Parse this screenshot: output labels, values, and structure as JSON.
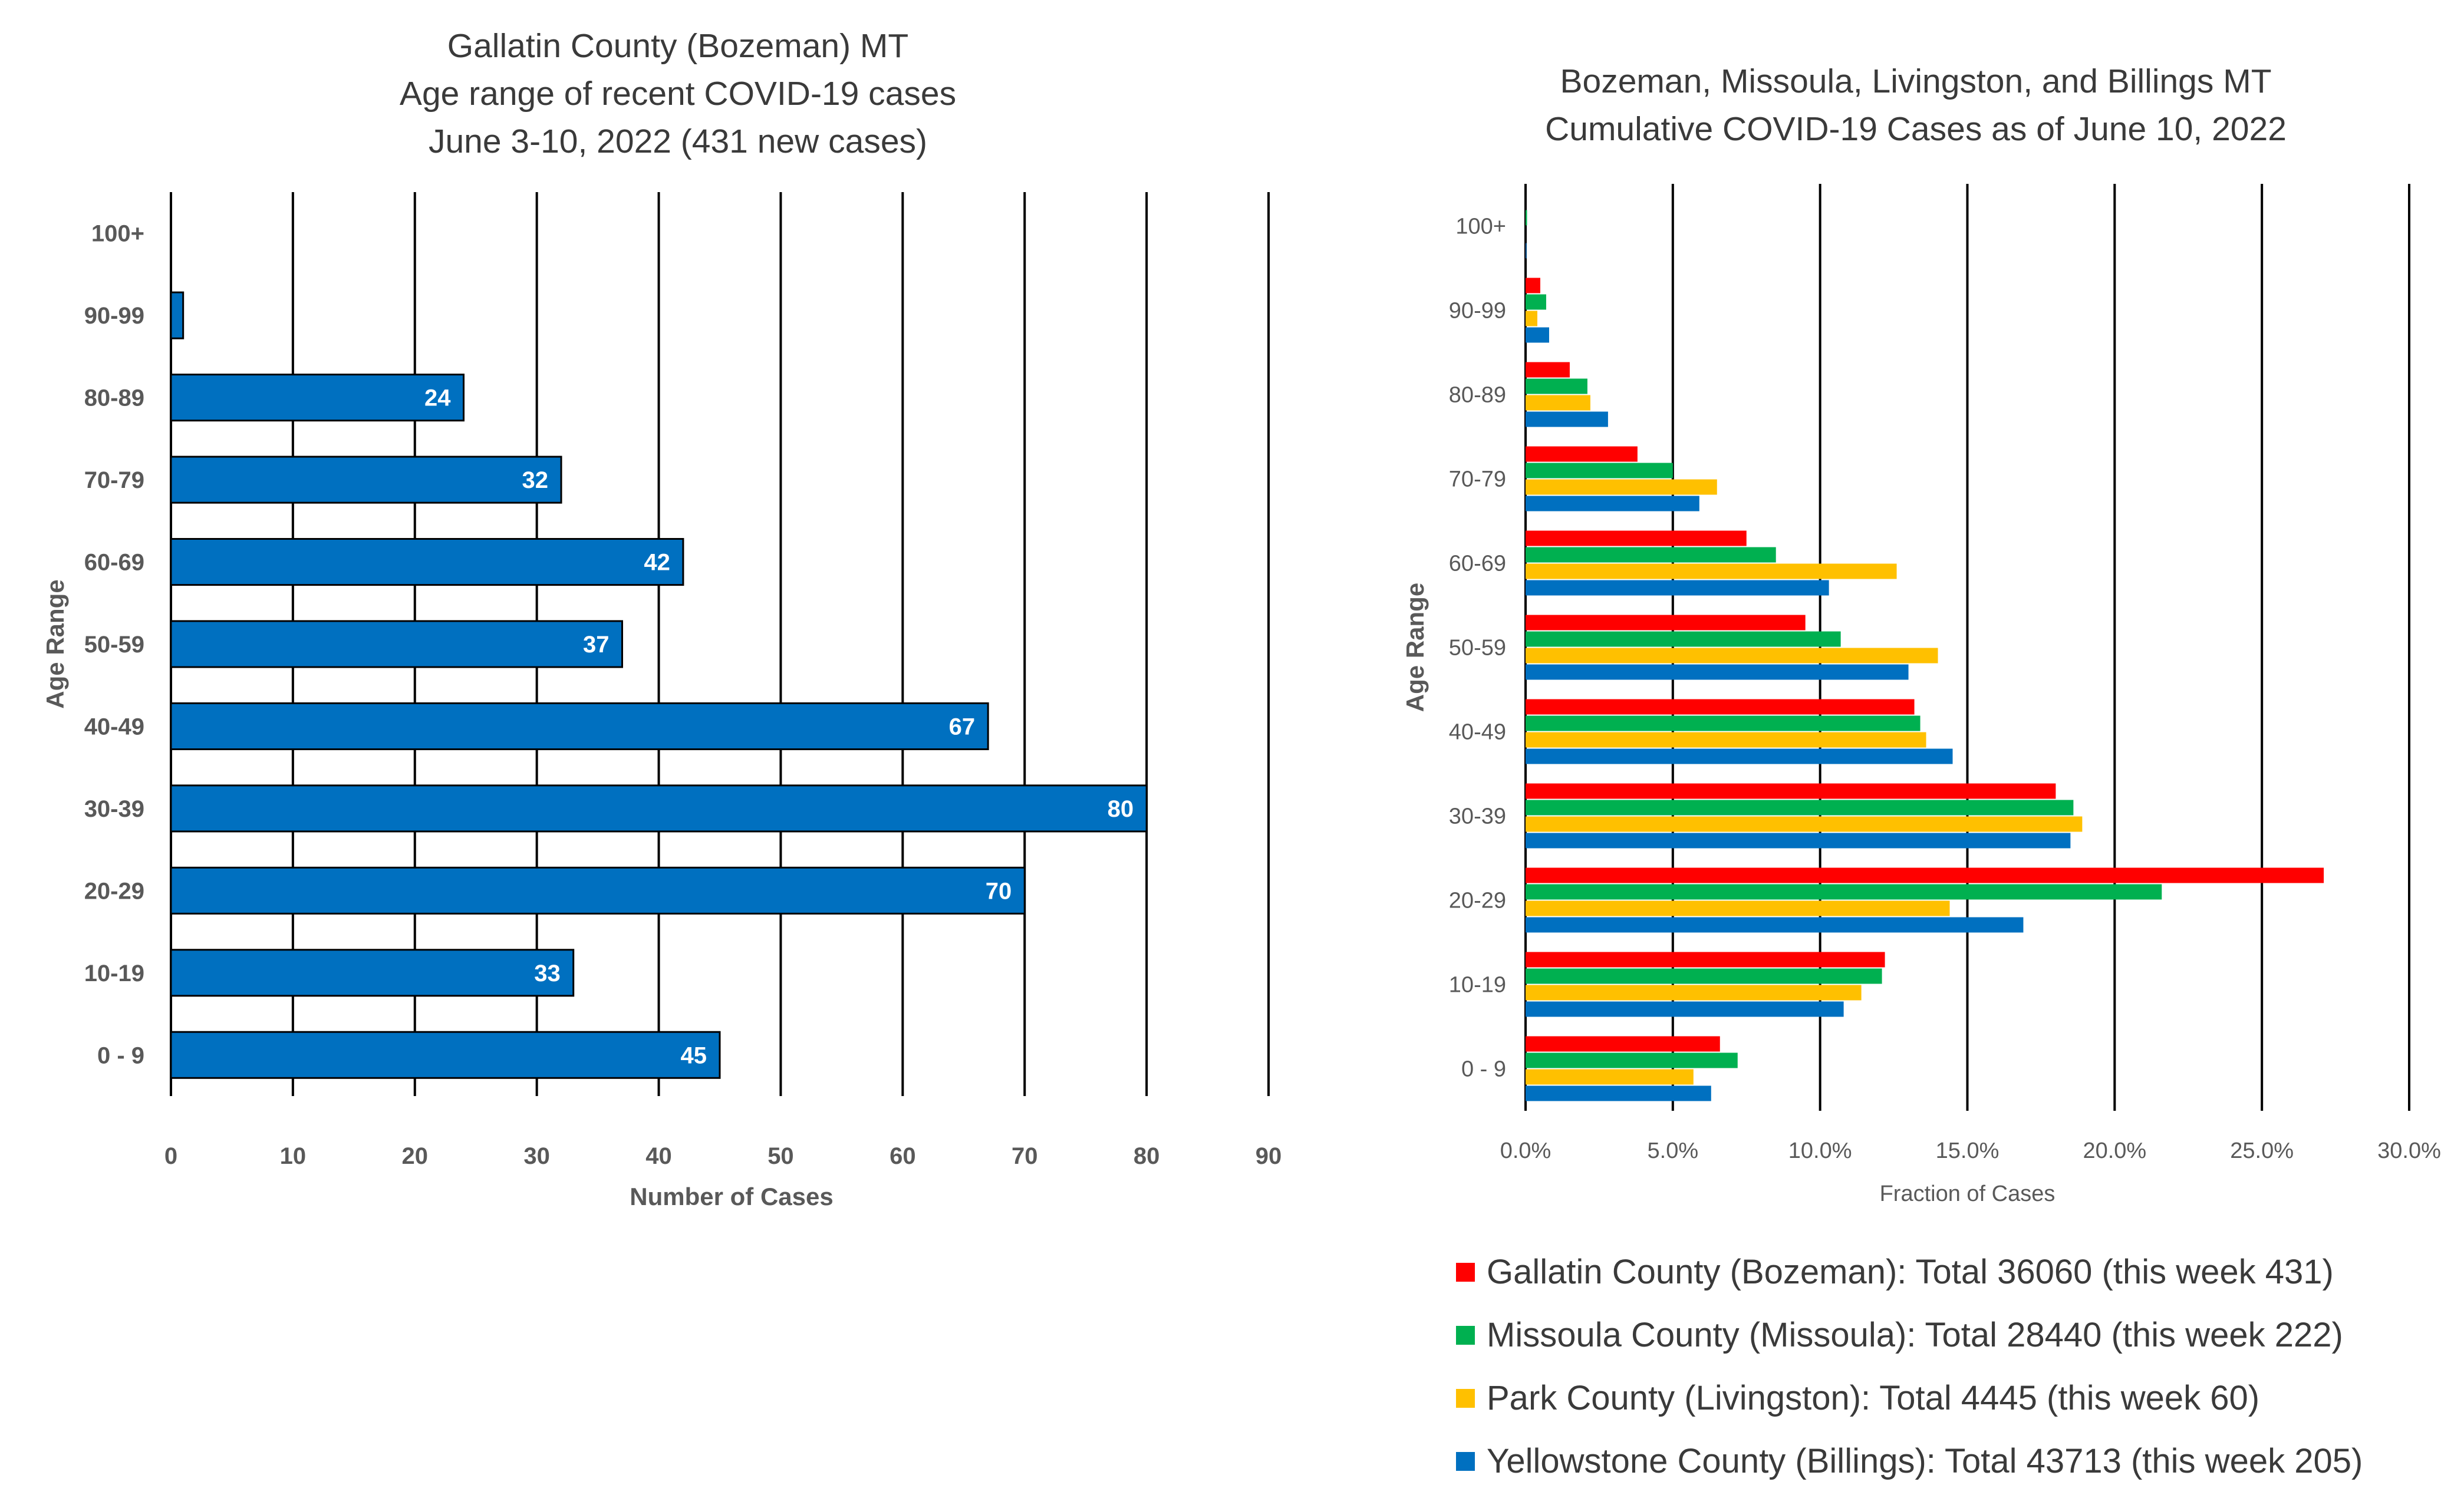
{
  "colors": {
    "bar_left": "#0070c0",
    "gallatin": "#ff0000",
    "missoula": "#00b050",
    "park": "#ffc000",
    "yellowstone": "#0070c0",
    "axis_text": "#595959",
    "title_text": "#3a3a3a"
  },
  "chart_data": [
    {
      "type": "bar",
      "orientation": "horizontal",
      "title_lines": [
        "Gallatin County (Bozeman) MT",
        "Age range of recent COVID-19 cases",
        "June 3-10, 2022 (431 new cases)"
      ],
      "xlabel": "Number of Cases",
      "ylabel": "Age Range",
      "categories": [
        "0 - 9",
        "10-19",
        "20-29",
        "30-39",
        "40-49",
        "50-59",
        "60-69",
        "70-79",
        "80-89",
        "90-99",
        "100+"
      ],
      "values": [
        45,
        33,
        70,
        80,
        67,
        37,
        42,
        32,
        24,
        1,
        0
      ],
      "data_labels": [
        "45",
        "33",
        "70",
        "80",
        "67",
        "37",
        "42",
        "32",
        "24",
        "",
        ""
      ],
      "xlim": [
        0,
        90
      ],
      "xticks": [
        0,
        10,
        20,
        30,
        40,
        50,
        60,
        70,
        80,
        90
      ],
      "xtick_labels": [
        "0",
        "10",
        "20",
        "30",
        "40",
        "50",
        "60",
        "70",
        "80",
        "90"
      ],
      "grid": "vertical"
    },
    {
      "type": "bar",
      "orientation": "horizontal",
      "title_lines": [
        "Bozeman, Missoula, Livingston, and Billings MT",
        "Cumulative COVID-19 Cases as of June 10, 2022"
      ],
      "xlabel": "Fraction of Cases",
      "ylabel": "Age Range",
      "categories": [
        "0 - 9",
        "10-19",
        "20-29",
        "30-39",
        "40-49",
        "50-59",
        "60-69",
        "70-79",
        "80-89",
        "90-99",
        "100+"
      ],
      "series": [
        {
          "name": "Gallatin County (Bozeman): Total 36060 (this week 431)",
          "color_key": "gallatin",
          "values": [
            0.066,
            0.122,
            0.271,
            0.18,
            0.132,
            0.095,
            0.075,
            0.038,
            0.015,
            0.005,
            0.0
          ]
        },
        {
          "name": "Missoula County (Missoula): Total 28440 (this week 222)",
          "color_key": "missoula",
          "values": [
            0.072,
            0.121,
            0.216,
            0.186,
            0.134,
            0.107,
            0.085,
            0.05,
            0.021,
            0.007,
            0.0005
          ]
        },
        {
          "name": "Park County (Livingston): Total 4445 (this week 60)",
          "color_key": "park",
          "values": [
            0.057,
            0.114,
            0.144,
            0.189,
            0.136,
            0.14,
            0.126,
            0.065,
            0.022,
            0.004,
            0.0
          ]
        },
        {
          "name": "Yellowstone County (Billings): Total 43713 (this week 205)",
          "color_key": "yellowstone",
          "values": [
            0.063,
            0.108,
            0.169,
            0.185,
            0.145,
            0.13,
            0.103,
            0.059,
            0.028,
            0.008,
            0.0003
          ]
        }
      ],
      "xlim": [
        0,
        0.3
      ],
      "xticks": [
        0,
        0.05,
        0.1,
        0.15,
        0.2,
        0.25,
        0.3
      ],
      "xtick_labels": [
        "0.0%",
        "5.0%",
        "10.0%",
        "15.0%",
        "20.0%",
        "25.0%",
        "30.0%"
      ],
      "grid": "vertical",
      "legend_position": "bottom"
    }
  ]
}
